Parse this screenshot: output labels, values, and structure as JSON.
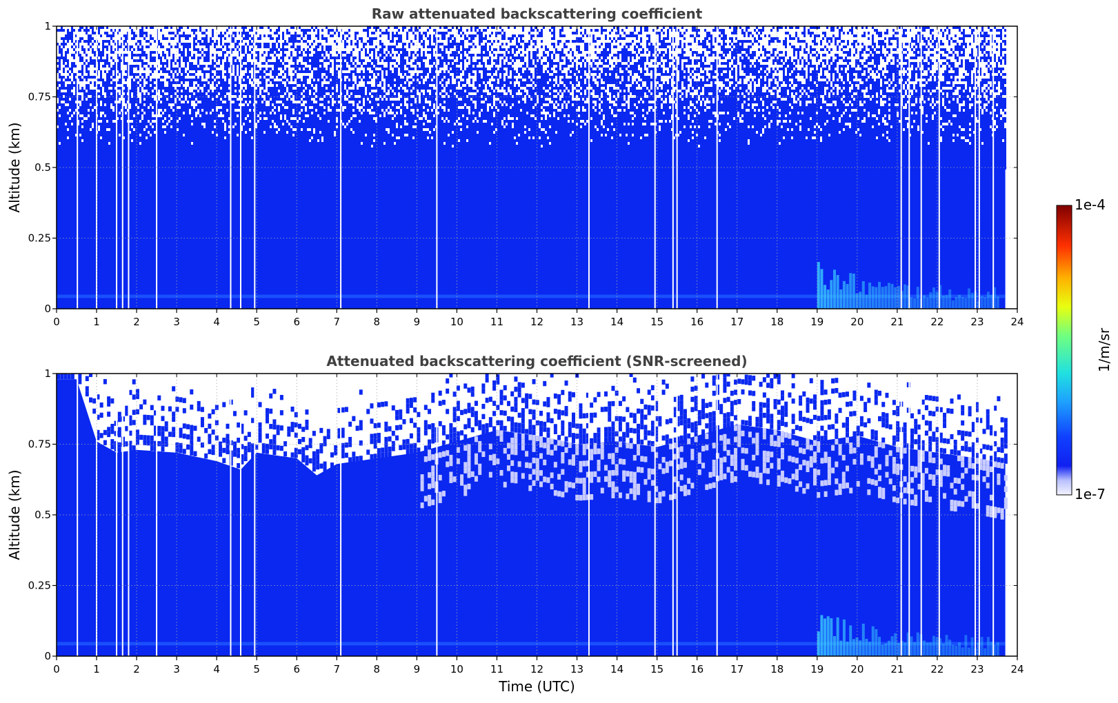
{
  "colors": {
    "main_blue": "#0a28f0",
    "light_blue": "#1e5aff",
    "cyan": "#3cd2ff",
    "title_gray": "#404040"
  },
  "colorbar": {
    "label": "1/m/sr",
    "max_label": "1e-4",
    "min_label": "1e-7",
    "scale": "log",
    "colormap": "jet (white at minimum)"
  },
  "chart_data": [
    {
      "type": "heatmap",
      "title": "Raw attenuated backscattering coefficient",
      "xlabel": "",
      "ylabel": "Altitude (km)",
      "xlim": [
        0,
        24
      ],
      "ylim": [
        0,
        1
      ],
      "x_ticks": [
        "0",
        "1",
        "2",
        "3",
        "4",
        "5",
        "6",
        "7",
        "8",
        "9",
        "10",
        "11",
        "12",
        "13",
        "14",
        "15",
        "16",
        "17",
        "18",
        "19",
        "20",
        "21",
        "22",
        "23",
        "24"
      ],
      "y_ticks": [
        "0",
        "0.25",
        "0.5",
        "0.75",
        "1"
      ],
      "grid": true,
      "data_end_time": 23.7,
      "gap_times": [
        0.52,
        1.0,
        1.5,
        1.65,
        1.8,
        2.5,
        4.35,
        4.6,
        4.95,
        7.1,
        9.5,
        13.3,
        14.95,
        15.4,
        15.5,
        16.5,
        21.1,
        21.3,
        21.6,
        22.05,
        22.95,
        23.05,
        23.4
      ],
      "features": {
        "noise_above_km": 0.7,
        "near_surface_layer_km": 0.05,
        "aerosol_plume_time": [
          19.0,
          23.5
        ],
        "aerosol_plume_top_km": 0.18
      }
    },
    {
      "type": "heatmap",
      "title": "Attenuated backscattering coefficient (SNR-screened)",
      "xlabel": "Time (UTC)",
      "ylabel": "Altitude (km)",
      "xlim": [
        0,
        24
      ],
      "ylim": [
        0,
        1
      ],
      "x_ticks": [
        "0",
        "1",
        "2",
        "3",
        "4",
        "5",
        "6",
        "7",
        "8",
        "9",
        "10",
        "11",
        "12",
        "13",
        "14",
        "15",
        "16",
        "17",
        "18",
        "19",
        "20",
        "21",
        "22",
        "23",
        "24"
      ],
      "y_ticks": [
        "0",
        "0.25",
        "0.5",
        "0.75",
        "1"
      ],
      "grid": true,
      "data_end_time": 23.7,
      "gap_times": [
        0.52,
        1.0,
        1.5,
        1.65,
        1.8,
        2.5,
        4.35,
        4.6,
        4.95,
        7.1,
        9.5,
        13.3,
        14.95,
        15.4,
        15.5,
        16.5,
        21.1,
        21.3,
        21.6,
        22.05,
        22.95,
        23.05,
        23.4
      ],
      "boundary_layer_top_km": [
        [
          0,
          0.98
        ],
        [
          0.5,
          0.98
        ],
        [
          1.0,
          0.76
        ],
        [
          1.5,
          0.72
        ],
        [
          2.0,
          0.73
        ],
        [
          3.0,
          0.72
        ],
        [
          4.0,
          0.69
        ],
        [
          4.6,
          0.66
        ],
        [
          5.0,
          0.72
        ],
        [
          6.0,
          0.7
        ],
        [
          6.5,
          0.64
        ],
        [
          7.0,
          0.68
        ],
        [
          8.0,
          0.7
        ],
        [
          9.0,
          0.72
        ],
        [
          10.0,
          0.76
        ],
        [
          11.0,
          0.8
        ],
        [
          12.0,
          0.78
        ],
        [
          13.0,
          0.75
        ],
        [
          14.0,
          0.76
        ],
        [
          15.0,
          0.74
        ],
        [
          16.0,
          0.78
        ],
        [
          17.0,
          0.82
        ],
        [
          18.0,
          0.8
        ],
        [
          19.0,
          0.76
        ],
        [
          20.0,
          0.78
        ],
        [
          21.0,
          0.74
        ],
        [
          22.0,
          0.72
        ],
        [
          23.0,
          0.7
        ],
        [
          23.7,
          0.68
        ]
      ],
      "features": {
        "near_surface_layer_km": 0.05,
        "aerosol_plume_time": [
          19.0,
          23.5
        ],
        "aerosol_plume_top_km": 0.18
      }
    }
  ]
}
